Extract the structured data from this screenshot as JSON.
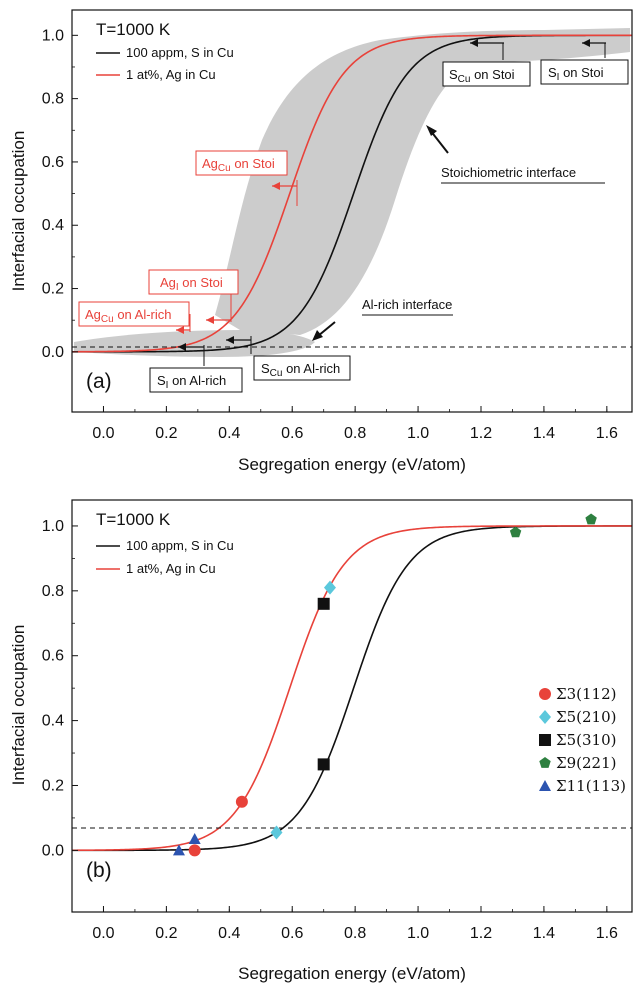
{
  "colors": {
    "black": "#111111",
    "red": "#e8423a",
    "band": "#cccccc"
  },
  "chart_data": [
    {
      "type": "line",
      "panel_label": "(a)",
      "temperature_label": "T=1000 K",
      "xlabel": "Segregation energy (eV/atom)",
      "ylabel": "Interfacial occupation",
      "xlim": [
        -0.1,
        1.68
      ],
      "ylim": [
        -0.19,
        1.08
      ],
      "xticks": [
        "0.0",
        "0.2",
        "0.4",
        "0.6",
        "0.8",
        "1.0",
        "1.2",
        "1.4",
        "1.6"
      ],
      "yticks": [
        "0.0",
        "0.2",
        "0.4",
        "0.6",
        "0.8",
        "1.0"
      ],
      "legend": [
        "100 appm, S in Cu",
        "1 at%, Ag in Cu"
      ],
      "series": [
        {
          "name": "100 appm, S in Cu",
          "color": "#111111",
          "x0": 0.795,
          "k": 0.0862
        },
        {
          "name": "1 at%, Ag in Cu",
          "color": "#e8423a",
          "x0": 0.592,
          "k": 0.0862
        }
      ],
      "annotations": {
        "s1_stoi": "S on Stoi",
        "scu_stoi": "Sᴄᴜ on Stoi",
        "stoich": "Stoichiometric interface",
        "alrich": "Al-rich interface",
        "s1_alrich": "S on Al-rich",
        "scu_alrich": "S",
        "scu_alrich_rest": " on Al-rich",
        "agcu_stoi": "Ag",
        "agcu_stoi_rest": " on Stoi",
        "ag1_stoi": "Ag",
        "ag1_stoi_rest": " on Stoi",
        "agcu_alrich": "Ag",
        "agcu_alrich_rest": " on Al-rich",
        "sub_cu": "Cu",
        "sub_1": "I"
      }
    },
    {
      "type": "line",
      "panel_label": "(b)",
      "temperature_label": "T=1000 K",
      "xlabel": "Segregation energy (eV/atom)",
      "ylabel": "Interfacial occupation",
      "xlim": [
        -0.1,
        1.68
      ],
      "ylim": [
        -0.19,
        1.08
      ],
      "xticks": [
        "0.0",
        "0.2",
        "0.4",
        "0.6",
        "0.8",
        "1.0",
        "1.2",
        "1.4",
        "1.6"
      ],
      "yticks": [
        "0.0",
        "0.2",
        "0.4",
        "0.6",
        "0.8",
        "1.0"
      ],
      "legend": [
        "100 appm, S in Cu",
        "1 at%, Ag in Cu"
      ],
      "series": [
        {
          "name": "100 appm, S in Cu",
          "color": "#111111",
          "x0": 0.795,
          "k": 0.0862
        },
        {
          "name": "1 at%, Ag in Cu",
          "color": "#e8423a",
          "x0": 0.592,
          "k": 0.0862
        }
      ],
      "markers": [
        {
          "name": "Σ3(112)",
          "color": "#e8423a",
          "shape": "circle",
          "points": [
            [
              0.29,
              0.0
            ],
            [
              0.44,
              0.15
            ]
          ]
        },
        {
          "name": "Σ5(210)",
          "color": "#5bc8dc",
          "shape": "diamond",
          "points": [
            [
              0.55,
              0.055
            ],
            [
              0.72,
              0.81
            ]
          ]
        },
        {
          "name": "Σ5(310)",
          "color": "#111111",
          "shape": "square",
          "points": [
            [
              0.7,
              0.265
            ],
            [
              0.7,
              0.76
            ]
          ]
        },
        {
          "name": "Σ9(221)",
          "color": "#2e8040",
          "shape": "pentagon",
          "points": [
            [
              1.31,
              0.98
            ],
            [
              1.55,
              1.02
            ]
          ]
        },
        {
          "name": "Σ11(113)",
          "color": "#2c54b0",
          "shape": "triangle",
          "points": [
            [
              0.24,
              0.0
            ],
            [
              0.29,
              0.035
            ]
          ]
        }
      ]
    }
  ]
}
